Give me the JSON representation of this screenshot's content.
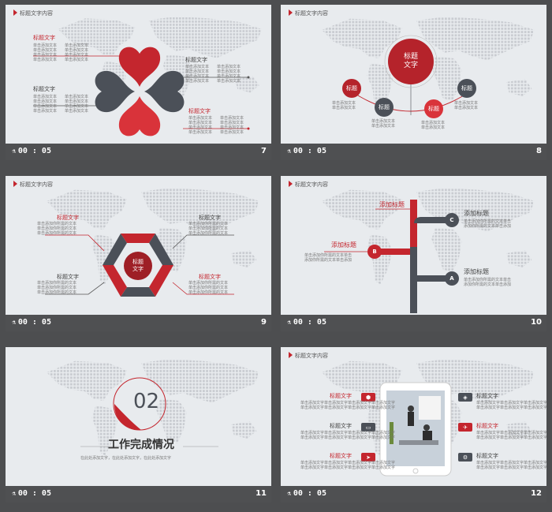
{
  "colors": {
    "accent": "#c4262e",
    "dark": "#4b5058",
    "bg": "#e8ebee",
    "footer": "#4f5052"
  },
  "footer": {
    "time": "00 : 05",
    "icon": "vehicle-icon"
  },
  "slides": [
    {
      "num": "7",
      "header": "标题文字内容",
      "labels": {
        "tl": "标题文字",
        "tr": "标题文字",
        "bl": "标题文字",
        "br": "标题文字"
      },
      "body": "单击添加文本\n单击添加文本\n单击添加文本\n单击添加文本"
    },
    {
      "num": "8",
      "header": "标题文字内容",
      "center": "标题\n文字",
      "nodes": [
        "标题",
        "标题",
        "标题",
        "标题"
      ],
      "body": "单击添加文本\n单击添加文本"
    },
    {
      "num": "9",
      "header": "标题文字内容",
      "center": "标题\n文字",
      "labels": {
        "tl": "标题文字",
        "tr": "标题文字",
        "bl": "标题文字",
        "br": "标题文字"
      },
      "body": "单击添加你所需的文本\n单击添加你所需的文本\n单击添加你所需的文本"
    },
    {
      "num": "10",
      "header": "标题文字内容",
      "items": [
        {
          "title": "添加标题",
          "letter": "C"
        },
        {
          "title": "添加标题",
          "letter": "B"
        },
        {
          "title": "添加标题",
          "letter": "A"
        }
      ],
      "left_title": "添加标题",
      "body": "单击添加你所需的文本单击\n添加你所需的文本单击添加"
    },
    {
      "num": "11",
      "section_no": "02",
      "section_title": "工作完成情况",
      "subtitle": "在此处添加文字，在此处添加文字，在此处添加文字"
    },
    {
      "num": "12",
      "header": "标题文字内容",
      "labels": [
        "标题文字",
        "标题文字",
        "标题文字",
        "标题文字",
        "标题文字",
        "标题文字"
      ],
      "body": "单击添加文字单击添加文字单击添加文字单击添加文字"
    }
  ]
}
